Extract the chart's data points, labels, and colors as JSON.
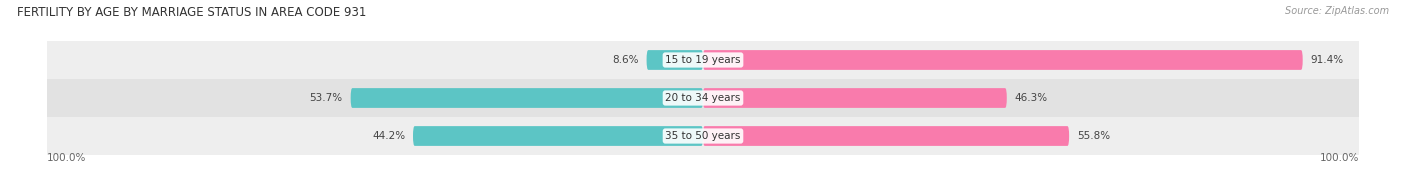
{
  "title": "FERTILITY BY AGE BY MARRIAGE STATUS IN AREA CODE 931",
  "source": "Source: ZipAtlas.com",
  "categories": [
    "15 to 19 years",
    "20 to 34 years",
    "35 to 50 years"
  ],
  "married": [
    8.6,
    53.7,
    44.2
  ],
  "unmarried": [
    91.4,
    46.3,
    55.8
  ],
  "married_color": "#5CC5C5",
  "unmarried_color": "#F97BAC",
  "row_bg_colors": [
    "#EEEEEE",
    "#E2E2E2",
    "#EEEEEE"
  ],
  "title_fontsize": 8.5,
  "source_fontsize": 7.0,
  "label_fontsize": 7.5,
  "cat_fontsize": 7.5,
  "bar_height": 0.52,
  "figsize": [
    14.06,
    1.96
  ],
  "dpi": 100,
  "xlim": 100
}
